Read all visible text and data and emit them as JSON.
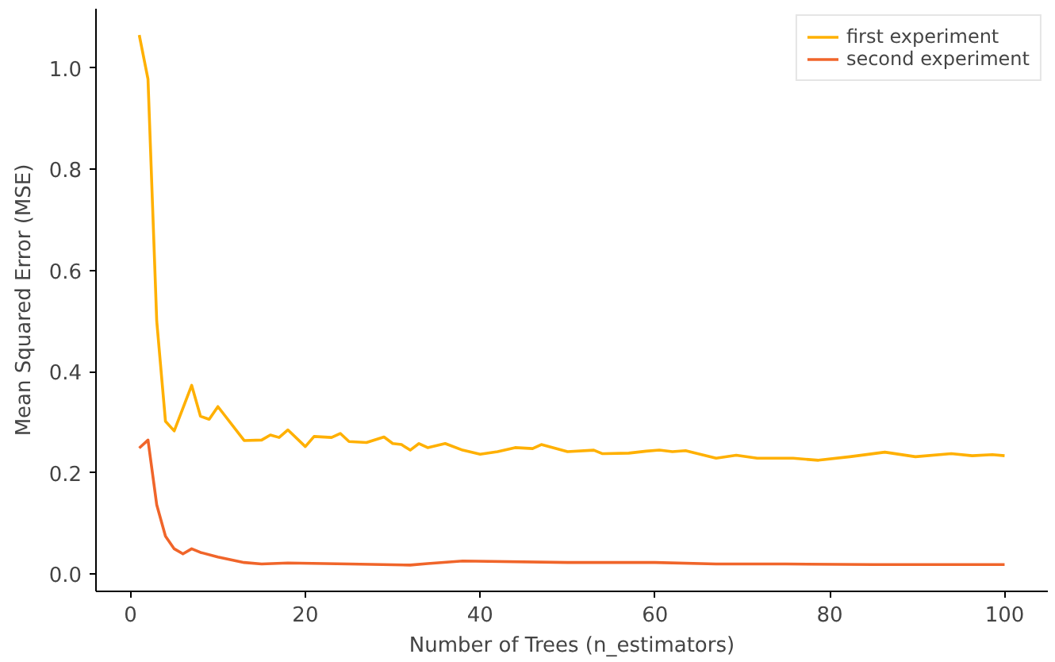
{
  "chart_data": {
    "type": "line",
    "xlabel": "Number of Trees (n_estimators)",
    "ylabel": "Mean Squared Error (MSE)",
    "xlim": [
      -3.95,
      104.95
    ],
    "ylim": [
      -0.034,
      1.117
    ],
    "xticks": [
      0,
      20,
      40,
      60,
      80,
      100
    ],
    "yticks": [
      {
        "value": 0,
        "label": "0.0"
      },
      0.2,
      0.4,
      0.6,
      0.8,
      {
        "value": 1,
        "label": "1.0"
      }
    ],
    "grid": false,
    "legend": "top right",
    "series": [
      {
        "name": "first experiment",
        "color": "#ffb000",
        "x": [
          1,
          2,
          3,
          4,
          5,
          7,
          8,
          9,
          10,
          13,
          15,
          16,
          17,
          18,
          20,
          21,
          23,
          24,
          25,
          27,
          29,
          30,
          31,
          32,
          33,
          34,
          36,
          38,
          40,
          42,
          44,
          46,
          47,
          50,
          53,
          54,
          57,
          59,
          60.5,
          62,
          63.5,
          67,
          69.3,
          71.7,
          75.8,
          78.7,
          82.3,
          86.3,
          89.8,
          93.9,
          96.3,
          98.6,
          100
        ],
        "values": [
          1.065,
          0.978,
          0.5,
          0.302,
          0.283,
          0.373,
          0.312,
          0.306,
          0.331,
          0.264,
          0.265,
          0.275,
          0.27,
          0.285,
          0.252,
          0.272,
          0.27,
          0.278,
          0.262,
          0.26,
          0.271,
          0.258,
          0.256,
          0.245,
          0.258,
          0.25,
          0.258,
          0.245,
          0.237,
          0.242,
          0.25,
          0.248,
          0.256,
          0.242,
          0.245,
          0.238,
          0.239,
          0.243,
          0.245,
          0.242,
          0.244,
          0.229,
          0.235,
          0.229,
          0.229,
          0.225,
          0.232,
          0.241,
          0.232,
          0.238,
          0.234,
          0.236,
          0.234
        ]
      },
      {
        "name": "second experiment",
        "color": "#f0652a",
        "x": [
          1,
          2,
          3,
          4,
          5,
          6,
          7,
          8,
          10,
          13,
          15,
          18,
          25,
          32,
          34,
          38,
          50,
          60,
          67,
          75,
          85,
          100
        ],
        "values": [
          0.249,
          0.265,
          0.137,
          0.075,
          0.05,
          0.04,
          0.05,
          0.043,
          0.034,
          0.023,
          0.02,
          0.022,
          0.02,
          0.018,
          0.021,
          0.026,
          0.023,
          0.023,
          0.02,
          0.02,
          0.019,
          0.019
        ]
      }
    ]
  }
}
